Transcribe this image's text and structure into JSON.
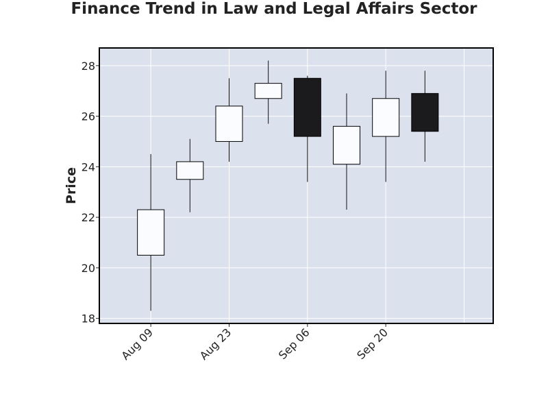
{
  "chart_data": {
    "type": "candlestick",
    "title": "Finance Trend in Law and Legal Affairs Sector",
    "xlabel": "",
    "ylabel": "Price",
    "ylim": [
      17.8,
      28.7
    ],
    "y_ticks": [
      18,
      20,
      22,
      24,
      26,
      28
    ],
    "x_ticks": [
      {
        "label": "Aug 09",
        "date": "2023-08-09"
      },
      {
        "label": "Aug 23",
        "date": "2023-08-23"
      },
      {
        "label": "Sep 06",
        "date": "2023-09-06"
      },
      {
        "label": "Sep 20",
        "date": "2023-09-20"
      }
    ],
    "grid": true,
    "colors": {
      "plot_background": "#dce1ee",
      "up_body": "#fbfcff",
      "down_body": "#1b1b1d",
      "wick": "#111111",
      "grid": "#ffffff"
    },
    "candles": [
      {
        "date": "2023-08-09",
        "open": 20.5,
        "high": 24.5,
        "low": 18.3,
        "close": 22.3
      },
      {
        "date": "2023-08-16",
        "open": 23.5,
        "high": 25.1,
        "low": 22.2,
        "close": 24.2
      },
      {
        "date": "2023-08-23",
        "open": 25.0,
        "high": 27.5,
        "low": 24.2,
        "close": 26.4
      },
      {
        "date": "2023-08-30",
        "open": 26.7,
        "high": 28.2,
        "low": 25.7,
        "close": 27.3
      },
      {
        "date": "2023-09-06",
        "open": 27.5,
        "high": 27.6,
        "low": 23.4,
        "close": 25.2
      },
      {
        "date": "2023-09-13",
        "open": 24.1,
        "high": 26.9,
        "low": 22.3,
        "close": 25.6
      },
      {
        "date": "2023-09-20",
        "open": 25.2,
        "high": 27.8,
        "low": 23.4,
        "close": 26.7
      },
      {
        "date": "2023-09-27",
        "open": 26.9,
        "high": 27.8,
        "low": 24.2,
        "close": 25.4
      }
    ]
  }
}
